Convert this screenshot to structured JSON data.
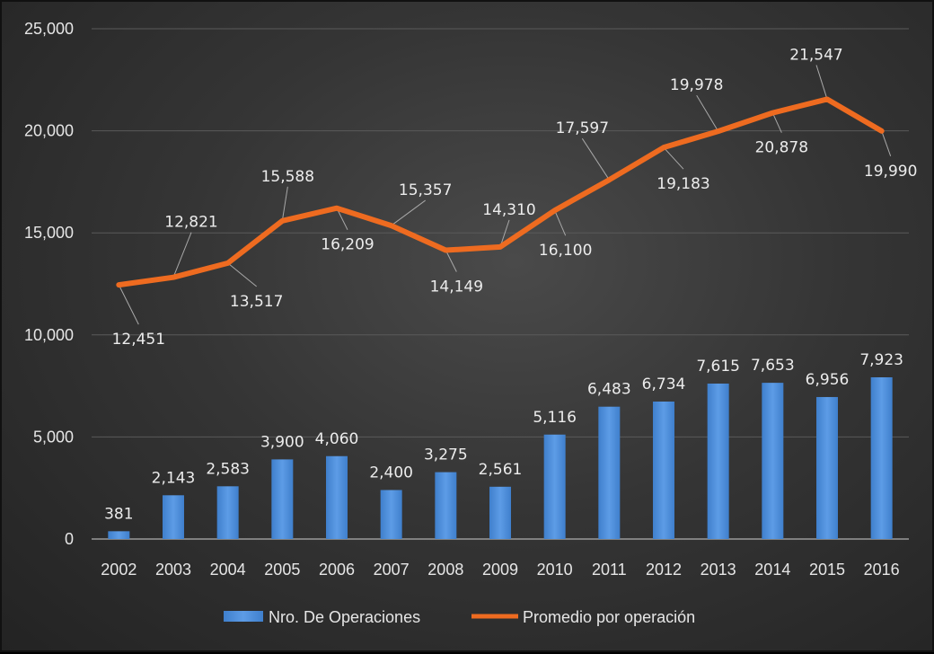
{
  "chart_data": {
    "type": "bar+line",
    "title": "",
    "categories": [
      "2002",
      "2003",
      "2004",
      "2005",
      "2006",
      "2007",
      "2008",
      "2009",
      "2010",
      "2011",
      "2012",
      "2013",
      "2014",
      "2015",
      "2016"
    ],
    "ylim": [
      0,
      25000
    ],
    "yticks": [
      "0",
      "5,000",
      "10,000",
      "15,000",
      "20,000",
      "25,000"
    ],
    "grid": true,
    "legend_position": "bottom",
    "series": [
      {
        "name": "Nro. De Operaciones",
        "kind": "bar",
        "color": "#4f8fd8",
        "values": [
          381,
          2143,
          2583,
          3900,
          4060,
          2400,
          3275,
          2561,
          5116,
          6483,
          6734,
          7615,
          7653,
          6956,
          7923
        ],
        "labels": [
          "381",
          "2,143",
          "2,583",
          "3,900",
          "4,060",
          "2,400",
          "3,275",
          "2,561",
          "5,116",
          "6,483",
          "6,734",
          "7,615",
          "7,653",
          "6,956",
          "7,923"
        ]
      },
      {
        "name": "Promedio por operación",
        "kind": "line",
        "color": "#ee6b20",
        "values": [
          12451,
          12821,
          13517,
          15588,
          16209,
          15357,
          14149,
          14310,
          16100,
          17597,
          19183,
          19978,
          20878,
          21547,
          19990
        ],
        "labels": [
          "12,451",
          "12,821",
          "13,517",
          "15,588",
          "16,209",
          "15,357",
          "14,149",
          "14,310",
          "16,100",
          "17,597",
          "19,183",
          "19,978",
          "20,878",
          "21,547",
          "19,990"
        ]
      }
    ]
  }
}
